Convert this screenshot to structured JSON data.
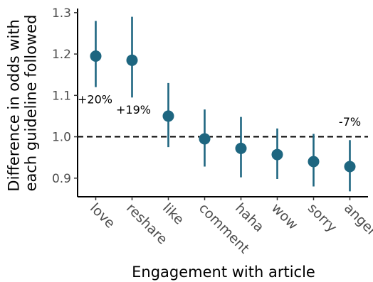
{
  "chart_data": {
    "type": "scatter",
    "subtype": "point-range",
    "title": "",
    "xlabel": "Engagement with article",
    "ylabel": [
      "Difference in odds with",
      "each guideline followed"
    ],
    "categories": [
      "love",
      "reshare",
      "like",
      "comment",
      "haha",
      "wow",
      "sorry",
      "anger"
    ],
    "series": [
      {
        "values": [
          1.195,
          1.185,
          1.05,
          0.995,
          0.972,
          0.957,
          0.94,
          0.928
        ],
        "lower": [
          1.12,
          1.095,
          0.975,
          0.928,
          0.902,
          0.898,
          0.88,
          0.868
        ],
        "upper": [
          1.28,
          1.29,
          1.13,
          1.066,
          1.048,
          1.02,
          1.007,
          0.992
        ]
      }
    ],
    "ylim": [
      0.855,
      1.31
    ],
    "yticks": [
      0.9,
      1.0,
      1.1,
      1.2,
      1.3
    ],
    "ytick_labels": [
      "0.9",
      "1.0",
      "1.1",
      "1.2",
      "1.3"
    ],
    "reference_line": {
      "y": 1.0,
      "style": "dashed"
    },
    "annotations": [
      {
        "text": "+20%",
        "category": "love"
      },
      {
        "text": "+19%",
        "category": "reshare"
      },
      {
        "text": "-7%",
        "category": "anger"
      }
    ],
    "grid": false,
    "legend": "none",
    "colors": {
      "point": "#1e6680",
      "errorbar": "#1e6680",
      "axis": "#000000"
    }
  }
}
